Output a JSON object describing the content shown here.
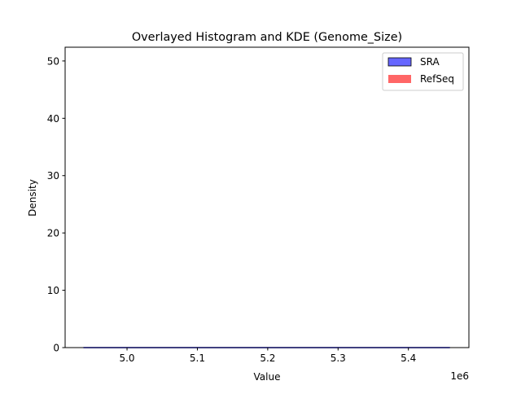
{
  "chart_data": {
    "type": "line",
    "title": "Overlayed Histogram and KDE (Genome_Size)",
    "xlabel": "Value",
    "ylabel": "Density",
    "x_offset_label": "1e6",
    "xlim": [
      4.912,
      5.486
    ],
    "ylim": [
      0,
      52.4
    ],
    "x_ticks": [
      5.0,
      5.1,
      5.2,
      5.3,
      5.4
    ],
    "x_tick_labels": [
      "5.0",
      "5.1",
      "5.2",
      "5.3",
      "5.4"
    ],
    "y_ticks": [
      0,
      10,
      20,
      30,
      40,
      50
    ],
    "y_tick_labels": [
      "0",
      "10",
      "20",
      "30",
      "40",
      "50"
    ],
    "grid": false,
    "legend_position": "top-right",
    "legend": [
      {
        "name": "SRA",
        "color": "#6666ff",
        "edge": "#000000"
      },
      {
        "name": "RefSeq",
        "color": "#ff6666",
        "edge": "#ff6666"
      }
    ],
    "series": [
      {
        "name": "SRA",
        "kind": "kde",
        "color": "#0000ff",
        "x": [
          4.938,
          5.0,
          5.1,
          5.2,
          5.3,
          5.4,
          5.459
        ],
        "y": [
          0,
          0,
          0,
          0,
          0,
          0,
          0
        ]
      }
    ]
  }
}
